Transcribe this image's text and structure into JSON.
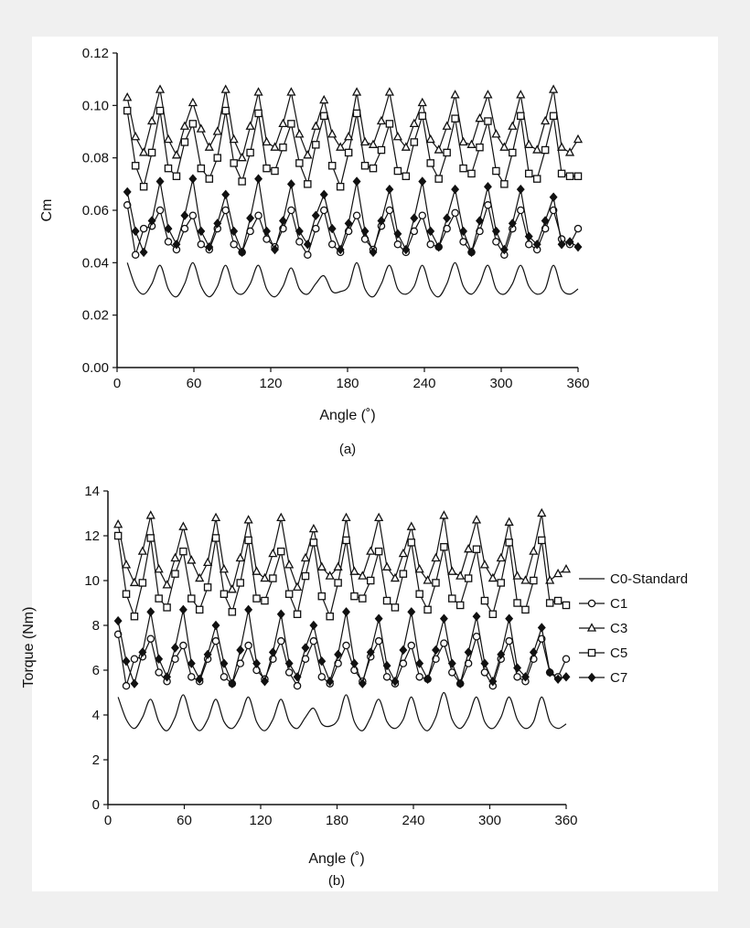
{
  "chart_data": [
    {
      "type": "line",
      "panel_label": "(a)",
      "xlabel": "Angle (˚)",
      "ylabel": "Cm",
      "xlim": [
        0,
        360
      ],
      "ylim": [
        0,
        0.12
      ],
      "xticks": [
        0,
        60,
        120,
        180,
        240,
        300,
        360
      ],
      "yticks": [
        "0.00",
        "0.02",
        "0.04",
        "0.06",
        "0.08",
        "0.10",
        "0.12"
      ],
      "grid": false,
      "x": [
        8,
        14.4,
        20.8,
        27.2,
        33.6,
        40,
        46.4,
        52.8,
        59.2,
        65.6,
        72,
        78.4,
        84.8,
        91.2,
        97.6,
        104,
        110.4,
        116.8,
        123.2,
        129.6,
        136,
        142.4,
        148.8,
        155.2,
        161.6,
        168,
        174.4,
        180.8,
        187.2,
        193.6,
        200,
        206.4,
        212.8,
        219.2,
        225.6,
        232,
        238.4,
        244.8,
        251.2,
        257.6,
        264,
        270.4,
        276.8,
        283.2,
        289.6,
        296,
        302.4,
        308.8,
        315.2,
        321.6,
        328,
        334.4,
        340.8,
        347.2,
        353.6,
        360
      ],
      "series": [
        {
          "name": "C0-Standard",
          "marker": "none",
          "values": [
            0.04,
            0.031,
            0.028,
            0.032,
            0.039,
            0.03,
            0.027,
            0.032,
            0.04,
            0.031,
            0.027,
            0.031,
            0.039,
            0.03,
            0.028,
            0.032,
            0.039,
            0.03,
            0.027,
            0.031,
            0.038,
            0.03,
            0.028,
            0.032,
            0.035,
            0.029,
            0.029,
            0.031,
            0.04,
            0.03,
            0.027,
            0.032,
            0.039,
            0.03,
            0.028,
            0.031,
            0.039,
            0.03,
            0.027,
            0.032,
            0.04,
            0.031,
            0.028,
            0.032,
            0.039,
            0.03,
            0.028,
            0.032,
            0.039,
            0.031,
            0.028,
            0.03,
            0.039,
            0.03,
            0.028,
            0.03
          ]
        },
        {
          "name": "C1",
          "marker": "circle",
          "values": [
            0.062,
            0.043,
            0.053,
            0.054,
            0.06,
            0.048,
            0.045,
            0.053,
            0.058,
            0.047,
            0.045,
            0.053,
            0.06,
            0.047,
            0.044,
            0.052,
            0.058,
            0.049,
            0.046,
            0.053,
            0.06,
            0.048,
            0.043,
            0.053,
            0.06,
            0.047,
            0.044,
            0.052,
            0.058,
            0.049,
            0.045,
            0.054,
            0.06,
            0.047,
            0.044,
            0.052,
            0.058,
            0.047,
            0.046,
            0.053,
            0.059,
            0.048,
            0.044,
            0.052,
            0.062,
            0.048,
            0.043,
            0.053,
            0.06,
            0.047,
            0.045,
            0.053,
            0.06,
            0.049,
            0.047,
            0.053
          ]
        },
        {
          "name": "C3",
          "marker": "triangle",
          "values": [
            0.103,
            0.088,
            0.082,
            0.094,
            0.106,
            0.087,
            0.081,
            0.092,
            0.101,
            0.091,
            0.084,
            0.09,
            0.106,
            0.087,
            0.08,
            0.092,
            0.105,
            0.086,
            0.084,
            0.093,
            0.105,
            0.089,
            0.081,
            0.092,
            0.102,
            0.089,
            0.084,
            0.088,
            0.105,
            0.086,
            0.085,
            0.094,
            0.105,
            0.088,
            0.084,
            0.093,
            0.101,
            0.087,
            0.083,
            0.092,
            0.104,
            0.086,
            0.085,
            0.095,
            0.104,
            0.089,
            0.084,
            0.092,
            0.104,
            0.085,
            0.083,
            0.094,
            0.106,
            0.084,
            0.082,
            0.087
          ]
        },
        {
          "name": "C5",
          "marker": "square",
          "values": [
            0.098,
            0.077,
            0.069,
            0.082,
            0.098,
            0.076,
            0.073,
            0.086,
            0.093,
            0.076,
            0.072,
            0.08,
            0.098,
            0.078,
            0.071,
            0.082,
            0.097,
            0.076,
            0.075,
            0.084,
            0.093,
            0.078,
            0.07,
            0.085,
            0.096,
            0.077,
            0.069,
            0.082,
            0.097,
            0.077,
            0.076,
            0.083,
            0.093,
            0.075,
            0.073,
            0.086,
            0.096,
            0.078,
            0.072,
            0.082,
            0.095,
            0.076,
            0.074,
            0.084,
            0.094,
            0.075,
            0.07,
            0.082,
            0.096,
            0.074,
            0.072,
            0.083,
            0.096,
            0.074,
            0.073,
            0.073
          ]
        },
        {
          "name": "C7",
          "marker": "diamond",
          "values": [
            0.067,
            0.052,
            0.044,
            0.056,
            0.071,
            0.053,
            0.047,
            0.058,
            0.072,
            0.052,
            0.046,
            0.055,
            0.066,
            0.052,
            0.044,
            0.057,
            0.072,
            0.052,
            0.045,
            0.056,
            0.07,
            0.052,
            0.047,
            0.058,
            0.066,
            0.053,
            0.045,
            0.055,
            0.071,
            0.052,
            0.044,
            0.056,
            0.068,
            0.051,
            0.045,
            0.057,
            0.071,
            0.052,
            0.046,
            0.057,
            0.068,
            0.052,
            0.044,
            0.056,
            0.069,
            0.052,
            0.045,
            0.055,
            0.068,
            0.05,
            0.047,
            0.056,
            0.065,
            0.047,
            0.048,
            0.046
          ]
        }
      ]
    },
    {
      "type": "line",
      "panel_label": "(b)",
      "xlabel": "Angle (˚)",
      "ylabel": "Torque (Nm)",
      "xlim": [
        0,
        360
      ],
      "ylim": [
        0,
        14
      ],
      "xticks": [
        0,
        60,
        120,
        180,
        240,
        300,
        360
      ],
      "yticks": [
        "0",
        "2",
        "4",
        "6",
        "8",
        "10",
        "12",
        "14"
      ],
      "grid": false,
      "legend": {
        "placement": "right",
        "entries": [
          "C0-Standard",
          "C1",
          "C3",
          "C5",
          "C7"
        ]
      },
      "x": [
        8,
        14.4,
        20.8,
        27.2,
        33.6,
        40,
        46.4,
        52.8,
        59.2,
        65.6,
        72,
        78.4,
        84.8,
        91.2,
        97.6,
        104,
        110.4,
        116.8,
        123.2,
        129.6,
        136,
        142.4,
        148.8,
        155.2,
        161.6,
        168,
        174.4,
        180.8,
        187.2,
        193.6,
        200,
        206.4,
        212.8,
        219.2,
        225.6,
        232,
        238.4,
        244.8,
        251.2,
        257.6,
        264,
        270.4,
        276.8,
        283.2,
        289.6,
        296,
        302.4,
        308.8,
        315.2,
        321.6,
        328,
        334.4,
        340.8,
        347.2,
        353.6,
        360
      ],
      "series": [
        {
          "name": "C0-Standard",
          "marker": "none",
          "values": [
            4.8,
            3.8,
            3.4,
            3.9,
            4.7,
            3.7,
            3.3,
            3.9,
            4.9,
            3.8,
            3.3,
            3.8,
            4.7,
            3.7,
            3.4,
            3.9,
            4.8,
            3.7,
            3.3,
            3.8,
            4.7,
            3.7,
            3.4,
            3.9,
            4.3,
            3.6,
            3.5,
            3.8,
            4.9,
            3.7,
            3.3,
            3.9,
            4.7,
            3.7,
            3.4,
            3.8,
            4.8,
            3.7,
            3.3,
            3.9,
            5.0,
            3.8,
            3.4,
            3.9,
            4.8,
            3.7,
            3.4,
            3.9,
            4.8,
            3.8,
            3.4,
            3.7,
            4.8,
            3.7,
            3.4,
            3.6
          ]
        },
        {
          "name": "C1",
          "marker": "circle",
          "values": [
            7.6,
            5.3,
            6.5,
            6.6,
            7.4,
            5.9,
            5.5,
            6.5,
            7.1,
            5.7,
            5.5,
            6.5,
            7.3,
            5.7,
            5.4,
            6.3,
            7.1,
            6.0,
            5.6,
            6.5,
            7.3,
            5.9,
            5.3,
            6.5,
            7.3,
            5.7,
            5.4,
            6.3,
            7.1,
            6.0,
            5.5,
            6.6,
            7.3,
            5.7,
            5.4,
            6.3,
            7.1,
            5.7,
            5.6,
            6.5,
            7.2,
            5.9,
            5.4,
            6.3,
            7.5,
            5.9,
            5.3,
            6.5,
            7.3,
            5.7,
            5.5,
            6.5,
            7.4,
            5.9,
            5.7,
            6.5
          ]
        },
        {
          "name": "C3",
          "marker": "triangle",
          "values": [
            12.5,
            10.7,
            9.9,
            11.3,
            12.9,
            10.5,
            9.8,
            11.0,
            12.4,
            10.9,
            10.1,
            10.8,
            12.8,
            10.5,
            9.6,
            11.0,
            12.7,
            10.4,
            10.1,
            11.2,
            12.8,
            10.7,
            9.7,
            11.0,
            12.3,
            10.6,
            10.2,
            10.6,
            12.8,
            10.4,
            10.2,
            11.3,
            12.8,
            10.6,
            10.1,
            11.2,
            12.4,
            10.5,
            10.0,
            11.0,
            12.9,
            10.4,
            10.2,
            11.4,
            12.7,
            10.7,
            10.1,
            11.0,
            12.6,
            10.2,
            10.0,
            11.3,
            13.0,
            10.0,
            10.3,
            10.5
          ]
        },
        {
          "name": "C5",
          "marker": "square",
          "values": [
            12.0,
            9.4,
            8.4,
            9.9,
            11.9,
            9.2,
            8.8,
            10.3,
            11.3,
            9.2,
            8.7,
            9.7,
            11.9,
            9.4,
            8.6,
            9.9,
            11.8,
            9.2,
            9.1,
            10.1,
            11.3,
            9.4,
            8.5,
            10.2,
            11.7,
            9.3,
            8.4,
            9.9,
            11.8,
            9.3,
            9.2,
            10.0,
            11.3,
            9.1,
            8.8,
            10.3,
            11.7,
            9.4,
            8.7,
            9.9,
            11.5,
            9.2,
            8.9,
            10.1,
            11.4,
            9.1,
            8.5,
            9.9,
            11.7,
            9.0,
            8.7,
            10.0,
            11.8,
            9.0,
            9.1,
            8.9
          ]
        },
        {
          "name": "C7",
          "marker": "diamond",
          "values": [
            8.2,
            6.4,
            5.4,
            6.8,
            8.6,
            6.5,
            5.7,
            7.0,
            8.7,
            6.3,
            5.6,
            6.7,
            8.0,
            6.3,
            5.4,
            6.9,
            8.7,
            6.3,
            5.5,
            6.8,
            8.5,
            6.3,
            5.7,
            7.0,
            8.0,
            6.4,
            5.5,
            6.7,
            8.6,
            6.3,
            5.4,
            6.8,
            8.3,
            6.2,
            5.5,
            6.9,
            8.6,
            6.3,
            5.6,
            6.9,
            8.3,
            6.3,
            5.4,
            6.8,
            8.4,
            6.3,
            5.5,
            6.7,
            8.3,
            6.1,
            5.7,
            6.8,
            7.9,
            5.9,
            5.6,
            5.7
          ]
        }
      ]
    }
  ],
  "colors": {
    "line": "#111111",
    "background": "#f0f0f0",
    "panel": "#ffffff"
  }
}
